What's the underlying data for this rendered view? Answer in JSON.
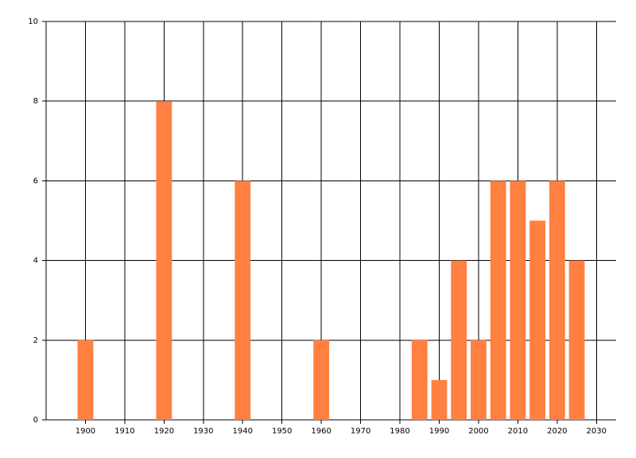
{
  "chart_data": {
    "type": "bar",
    "x": [
      1900,
      1920,
      1940,
      1960,
      1985,
      1990,
      1995,
      2000,
      2005,
      2010,
      2015,
      2020,
      2025
    ],
    "values": [
      2,
      8,
      6,
      2,
      2,
      1,
      4,
      2,
      6,
      6,
      5,
      6,
      4
    ],
    "color": "#ff8040",
    "xlim": [
      1890,
      2035
    ],
    "xticks": [
      1900,
      1910,
      1920,
      1930,
      1940,
      1950,
      1960,
      1970,
      1980,
      1990,
      2000,
      2010,
      2020,
      2030
    ],
    "ylim": [
      0,
      10
    ],
    "yticks": [
      0,
      2,
      4,
      6,
      8,
      10
    ],
    "grid": true
  }
}
